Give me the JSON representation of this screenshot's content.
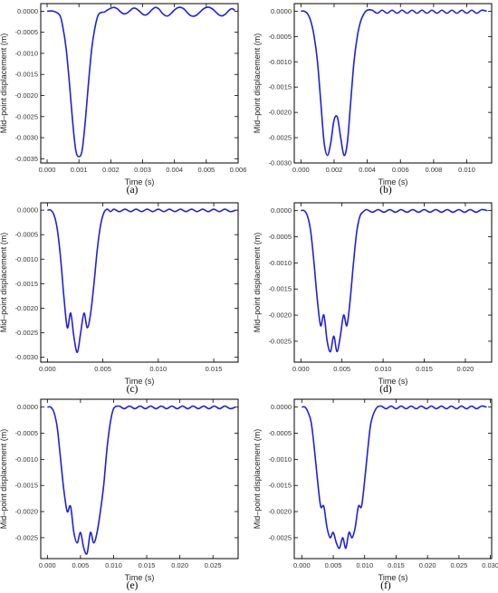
{
  "figure": {
    "line_color": "#1f1fe0",
    "panels": [
      "a",
      "b",
      "c",
      "d",
      "e",
      "f"
    ]
  },
  "chart_data": [
    {
      "type": "line",
      "tag": "(a)",
      "xlabel": "Time (s)",
      "ylabel": "Mid–point displacement (m)",
      "xlim": [
        -0.0002,
        0.006
      ],
      "ylim": [
        -0.0036,
        0.00018
      ],
      "xticks": [
        0.0,
        0.001,
        0.002,
        0.003,
        0.004,
        0.005,
        0.006
      ],
      "xtick_labels": [
        "0.000",
        "0.001",
        "0.002",
        "0.003",
        "0.004",
        "0.005",
        "0.006"
      ],
      "yticks": [
        0,
        -0.0005,
        -0.001,
        -0.0015,
        -0.002,
        -0.0025,
        -0.003,
        -0.0035
      ],
      "ytick_labels": [
        "0.0000",
        "-0.0005",
        "-0.0010",
        "-0.0015",
        "-0.0020",
        "-0.0025",
        "-0.0030",
        "-0.0035"
      ],
      "series": [
        {
          "x": [
            0.0,
            0.0002,
            0.0004,
            0.0005,
            0.0006,
            0.0007,
            0.0008,
            0.0009,
            0.001,
            0.0011,
            0.0012,
            0.0013,
            0.0014,
            0.0015,
            0.0016,
            0.0017,
            0.0018,
            0.0019,
            0.002,
            0.0021,
            0.0022,
            0.0023,
            0.0024,
            0.0025,
            0.0026,
            0.0027,
            0.0028,
            0.0029,
            0.003,
            0.0031,
            0.0032,
            0.0033,
            0.0034,
            0.0035,
            0.0036,
            0.0037,
            0.0038,
            0.0039,
            0.004,
            0.0041,
            0.0042,
            0.0043,
            0.0044,
            0.0045,
            0.0046,
            0.0047,
            0.0048,
            0.0049,
            0.005,
            0.0051,
            0.0052,
            0.0053,
            0.0054,
            0.0055,
            0.0056,
            0.0057,
            0.0058,
            0.0059
          ],
          "y": [
            0.0,
            0.0,
            -0.0001,
            -0.0004,
            -0.0009,
            -0.0017,
            -0.0026,
            -0.0033,
            -0.00345,
            -0.0033,
            -0.0026,
            -0.0017,
            -0.0009,
            -0.0004,
            -0.0001,
            -3e-05,
            -2e-05,
            3e-05,
            7e-05,
            9e-05,
            6e-05,
            -1e-05,
            -6e-05,
            -5e-05,
            1e-05,
            7e-05,
            6e-05,
            0.0,
            -7e-05,
            -9e-05,
            -4e-05,
            4e-05,
            9e-05,
            6e-05,
            -3e-05,
            -0.0001,
            -0.00011,
            -5e-05,
            3e-05,
            8e-05,
            9e-05,
            5e-05,
            -3e-05,
            -0.0001,
            -0.00012,
            -9e-05,
            -2e-05,
            5e-05,
            9e-05,
            9e-05,
            5e-05,
            -2e-05,
            -9e-05,
            -0.00011,
            -7e-05,
            1e-05,
            6e-05,
            2e-05
          ]
        }
      ]
    },
    {
      "type": "line",
      "tag": "(b)",
      "xlabel": "Time (s)",
      "ylabel": "Mid–point displacement (m)",
      "xlim": [
        -0.0004,
        0.0115
      ],
      "ylim": [
        -0.003,
        0.00015
      ],
      "xticks": [
        0.0,
        0.002,
        0.004,
        0.006,
        0.008,
        0.01
      ],
      "xtick_labels": [
        "0.000",
        "0.002",
        "0.004",
        "0.006",
        "0.008",
        "0.010"
      ],
      "yticks": [
        0,
        -0.0005,
        -0.001,
        -0.0015,
        -0.002,
        -0.0025,
        -0.003
      ],
      "ytick_labels": [
        "0.0000",
        "-0.0005",
        "-0.0010",
        "-0.0015",
        "-0.0020",
        "-0.0025",
        "-0.0030"
      ],
      "series": [
        {
          "x": [
            0.0,
            0.0002,
            0.0004,
            0.0006,
            0.0008,
            0.001,
            0.0012,
            0.0014,
            0.0016,
            0.0018,
            0.002,
            0.0022,
            0.0024,
            0.0026,
            0.0028,
            0.003,
            0.0032,
            0.0034,
            0.0036,
            0.0038,
            0.004,
            0.0043,
            0.0046,
            0.0049,
            0.0052,
            0.0055,
            0.0058,
            0.0061,
            0.0064,
            0.0067,
            0.007,
            0.0073,
            0.0076,
            0.0079,
            0.0082,
            0.0085,
            0.0088,
            0.0091,
            0.0094,
            0.0097,
            0.01,
            0.0103,
            0.0106,
            0.0109,
            0.0112
          ],
          "y": [
            0.0,
            0.0,
            -5e-05,
            -0.0002,
            -0.0005,
            -0.001,
            -0.0018,
            -0.0026,
            -0.00285,
            -0.0026,
            -0.00215,
            -0.0021,
            -0.0025,
            -0.00285,
            -0.0026,
            -0.0018,
            -0.001,
            -0.0005,
            -0.0002,
            -5e-05,
            2e-05,
            2e-05,
            -4e-05,
            2e-05,
            -4e-05,
            2e-05,
            -4e-05,
            2e-05,
            -4e-05,
            2e-05,
            -4e-05,
            2e-05,
            -4e-05,
            2e-05,
            -4e-05,
            2e-05,
            -4e-05,
            2e-05,
            -4e-05,
            2e-05,
            -4e-05,
            2e-05,
            -4e-05,
            2e-05,
            0.0
          ]
        }
      ]
    },
    {
      "type": "line",
      "tag": "(c)",
      "xlabel": "Time (s)",
      "ylabel": "Mid–point displacement (m)",
      "xlim": [
        -0.0006,
        0.0172
      ],
      "ylim": [
        -0.0031,
        0.00015
      ],
      "xticks": [
        0.0,
        0.005,
        0.01,
        0.015
      ],
      "xtick_labels": [
        "0.000",
        "0.005",
        "0.010",
        "0.015"
      ],
      "yticks": [
        0,
        -0.0005,
        -0.001,
        -0.0015,
        -0.002,
        -0.0025,
        -0.003
      ],
      "ytick_labels": [
        "0.0000",
        "-0.0005",
        "-0.0010",
        "-0.0015",
        "-0.0020",
        "-0.0025",
        "-0.0030"
      ],
      "series": [
        {
          "x": [
            0.0,
            0.0003,
            0.0006,
            0.0009,
            0.0012,
            0.0015,
            0.0018,
            0.0021,
            0.0024,
            0.0027,
            0.003,
            0.0033,
            0.0036,
            0.0039,
            0.0042,
            0.0045,
            0.0048,
            0.0051,
            0.0054,
            0.0057,
            0.006,
            0.0065,
            0.007,
            0.0075,
            0.008,
            0.0085,
            0.009,
            0.0095,
            0.01,
            0.0105,
            0.011,
            0.0115,
            0.012,
            0.0125,
            0.013,
            0.0135,
            0.014,
            0.0145,
            0.015,
            0.0155,
            0.016,
            0.0165,
            0.017
          ],
          "y": [
            0.0,
            0.0,
            -0.0001,
            -0.0004,
            -0.001,
            -0.0018,
            -0.0024,
            -0.0021,
            -0.0026,
            -0.0029,
            -0.0025,
            -0.0021,
            -0.0024,
            -0.0021,
            -0.0015,
            -0.0008,
            -0.0003,
            -5e-05,
            2e-05,
            -3e-05,
            2e-05,
            -3e-05,
            2e-05,
            -3e-05,
            2e-05,
            -3e-05,
            2e-05,
            -3e-05,
            2e-05,
            -3e-05,
            2e-05,
            -3e-05,
            2e-05,
            -3e-05,
            2e-05,
            -3e-05,
            2e-05,
            -3e-05,
            2e-05,
            -3e-05,
            2e-05,
            -3e-05,
            0.0
          ]
        }
      ]
    },
    {
      "type": "line",
      "tag": "(d)",
      "xlabel": "Time (s)",
      "ylabel": "Mid–point displacement (m)",
      "xlim": [
        -0.0008,
        0.0232
      ],
      "ylim": [
        -0.0029,
        0.00015
      ],
      "xticks": [
        0.0,
        0.005,
        0.01,
        0.015,
        0.02
      ],
      "xtick_labels": [
        "0.000",
        "0.005",
        "0.010",
        "0.015",
        "0.020"
      ],
      "yticks": [
        0,
        -0.0005,
        -0.001,
        -0.0015,
        -0.002,
        -0.0025
      ],
      "ytick_labels": [
        "0.0000",
        "-0.0005",
        "-0.0010",
        "-0.0015",
        "-0.0020",
        "-0.0025"
      ],
      "series": [
        {
          "x": [
            0.0,
            0.0004,
            0.0008,
            0.0012,
            0.0016,
            0.002,
            0.0024,
            0.0028,
            0.0032,
            0.0036,
            0.004,
            0.0044,
            0.0048,
            0.0052,
            0.0056,
            0.006,
            0.0064,
            0.0068,
            0.0072,
            0.0076,
            0.008,
            0.0087,
            0.0094,
            0.0101,
            0.0108,
            0.0115,
            0.0122,
            0.0129,
            0.0136,
            0.0143,
            0.015,
            0.0157,
            0.0164,
            0.0171,
            0.0178,
            0.0185,
            0.0192,
            0.0199,
            0.0206,
            0.0213,
            0.022,
            0.0227
          ],
          "y": [
            0.0,
            0.0,
            -0.0001,
            -0.0004,
            -0.001,
            -0.0017,
            -0.0022,
            -0.002,
            -0.0025,
            -0.0027,
            -0.0024,
            -0.0027,
            -0.0024,
            -0.002,
            -0.0022,
            -0.0017,
            -0.001,
            -0.0004,
            -0.0001,
            -2e-05,
            2e-05,
            -3e-05,
            2e-05,
            -3e-05,
            2e-05,
            -3e-05,
            2e-05,
            -3e-05,
            2e-05,
            -3e-05,
            2e-05,
            -3e-05,
            2e-05,
            -3e-05,
            2e-05,
            -3e-05,
            2e-05,
            -3e-05,
            2e-05,
            -3e-05,
            2e-05,
            0.0
          ]
        }
      ]
    },
    {
      "type": "line",
      "tag": "(e)",
      "xlabel": "Time (s)",
      "ylabel": "Mid–point displacement (m)",
      "xlim": [
        -0.001,
        0.0288
      ],
      "ylim": [
        -0.0029,
        0.00015
      ],
      "xticks": [
        0.0,
        0.005,
        0.01,
        0.015,
        0.02,
        0.025
      ],
      "xtick_labels": [
        "0.000",
        "0.005",
        "0.010",
        "0.015",
        "0.020",
        "0.025"
      ],
      "yticks": [
        0,
        -0.0005,
        -0.001,
        -0.0015,
        -0.002,
        -0.0025
      ],
      "ytick_labels": [
        "0.0000",
        "-0.0005",
        "-0.0010",
        "-0.0015",
        "-0.0020",
        "-0.0025"
      ],
      "series": [
        {
          "x": [
            0.0,
            0.0005,
            0.001,
            0.0015,
            0.002,
            0.0025,
            0.003,
            0.0035,
            0.004,
            0.0045,
            0.005,
            0.0055,
            0.006,
            0.0065,
            0.007,
            0.0075,
            0.008,
            0.0085,
            0.009,
            0.0095,
            0.01,
            0.0108,
            0.0116,
            0.0124,
            0.0132,
            0.014,
            0.0148,
            0.0156,
            0.0164,
            0.0172,
            0.018,
            0.0188,
            0.0196,
            0.0204,
            0.0212,
            0.022,
            0.0228,
            0.0236,
            0.0244,
            0.0252,
            0.026,
            0.0268,
            0.0276,
            0.0284
          ],
          "y": [
            0.0,
            0.0,
            -0.0001,
            -0.0004,
            -0.001,
            -0.0016,
            -0.002,
            -0.0019,
            -0.0024,
            -0.0026,
            -0.0024,
            -0.0027,
            -0.0028,
            -0.0024,
            -0.0026,
            -0.0024,
            -0.002,
            -0.0015,
            -0.0008,
            -0.0003,
            -3e-05,
            2e-05,
            -3e-05,
            2e-05,
            -3e-05,
            2e-05,
            -3e-05,
            2e-05,
            -3e-05,
            2e-05,
            -3e-05,
            2e-05,
            -3e-05,
            2e-05,
            -3e-05,
            2e-05,
            -3e-05,
            2e-05,
            -3e-05,
            2e-05,
            -3e-05,
            2e-05,
            -3e-05,
            0.0
          ]
        }
      ]
    },
    {
      "type": "line",
      "tag": "(f)",
      "xlabel": "Time (s)",
      "ylabel": "Mid–point displacement (m)",
      "xlim": [
        -0.0012,
        0.0302
      ],
      "ylim": [
        -0.0029,
        0.00015
      ],
      "xticks": [
        0.0,
        0.005,
        0.01,
        0.015,
        0.02,
        0.025,
        0.03
      ],
      "xtick_labels": [
        "0.000",
        "0.005",
        "0.010",
        "0.015",
        "0.020",
        "0.025",
        "0.030"
      ],
      "yticks": [
        0,
        -0.0005,
        -0.001,
        -0.0015,
        -0.002,
        -0.0025
      ],
      "ytick_labels": [
        "0.0000",
        "-0.0005",
        "-0.0010",
        "-0.0015",
        "-0.0020",
        "-0.0025"
      ],
      "series": [
        {
          "x": [
            0.0,
            0.0005,
            0.001,
            0.0015,
            0.002,
            0.0025,
            0.003,
            0.0035,
            0.004,
            0.0045,
            0.005,
            0.0055,
            0.006,
            0.0065,
            0.007,
            0.0075,
            0.008,
            0.0085,
            0.009,
            0.0095,
            0.01,
            0.0105,
            0.011,
            0.0118,
            0.0126,
            0.0134,
            0.0142,
            0.015,
            0.0158,
            0.0166,
            0.0174,
            0.0182,
            0.019,
            0.0198,
            0.0206,
            0.0214,
            0.0222,
            0.023,
            0.0238,
            0.0246,
            0.0254,
            0.0262,
            0.027,
            0.0278,
            0.0286,
            0.0294
          ],
          "y": [
            0.0,
            0.0,
            -0.0001,
            -0.0003,
            -0.0008,
            -0.0014,
            -0.0019,
            -0.0019,
            -0.0023,
            -0.0025,
            -0.0024,
            -0.0026,
            -0.0027,
            -0.0025,
            -0.0027,
            -0.0024,
            -0.0025,
            -0.0023,
            -0.0019,
            -0.0019,
            -0.0014,
            -0.0008,
            -0.0003,
            -3e-05,
            2e-05,
            -3e-05,
            2e-05,
            -3e-05,
            2e-05,
            -3e-05,
            2e-05,
            -3e-05,
            2e-05,
            -3e-05,
            2e-05,
            -3e-05,
            2e-05,
            -3e-05,
            2e-05,
            -3e-05,
            2e-05,
            -3e-05,
            2e-05,
            -3e-05,
            2e-05,
            0.0
          ]
        }
      ]
    }
  ]
}
